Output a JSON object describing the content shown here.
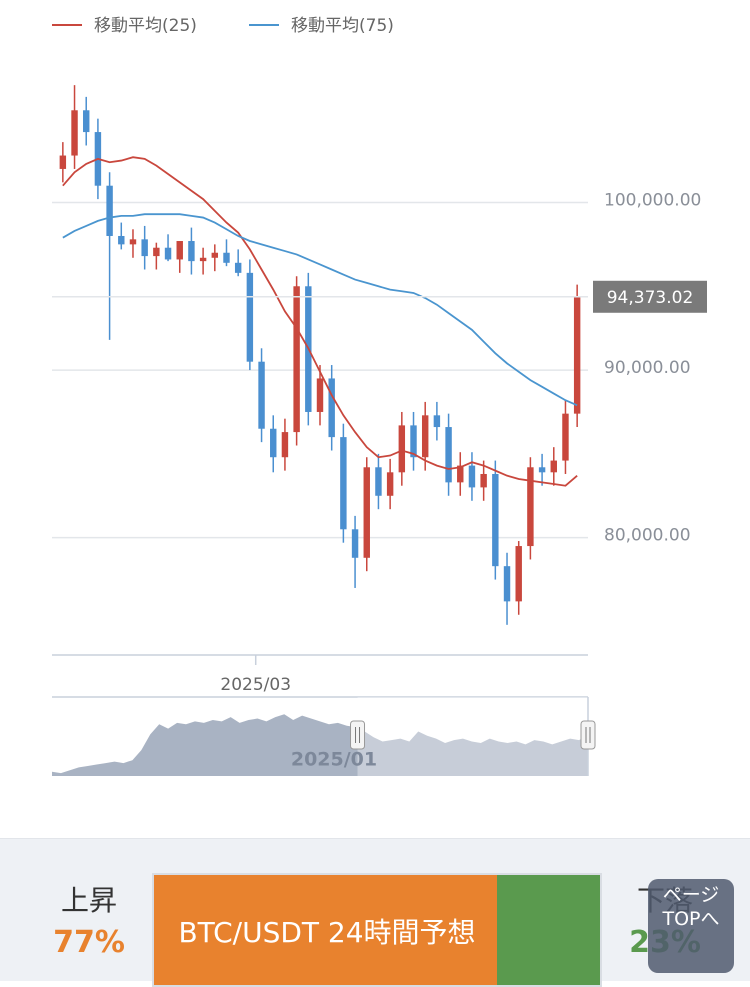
{
  "chart_data": {
    "type": "candlestick",
    "series": [
      {
        "name": "移動平均(25)",
        "color": "#c9473d",
        "values": [
          101000,
          101800,
          102300,
          102600,
          102400,
          102500,
          102700,
          102600,
          102200,
          101700,
          101200,
          100700,
          100200,
          99500,
          98800,
          98200,
          97200,
          96000,
          94800,
          93500,
          92500,
          91300,
          89900,
          88500,
          87300,
          86300,
          85400,
          84800,
          84900,
          85200,
          85000,
          84600,
          84300,
          84100,
          84200,
          84500,
          84300,
          84000,
          83700,
          83500,
          83400,
          83300,
          83200,
          83100,
          83700
        ]
      },
      {
        "name": "移動平均(75)",
        "color": "#4a95cf",
        "values": [
          97900,
          98300,
          98600,
          98900,
          99100,
          99200,
          99200,
          99300,
          99300,
          99300,
          99300,
          99200,
          99100,
          98800,
          98400,
          98000,
          97700,
          97500,
          97300,
          97100,
          96900,
          96600,
          96300,
          96000,
          95700,
          95400,
          95200,
          95000,
          94800,
          94700,
          94600,
          94300,
          93900,
          93400,
          92900,
          92400,
          91700,
          91000,
          90400,
          89900,
          89400,
          89000,
          88600,
          88200,
          87900
        ]
      }
    ],
    "open": [
      102000,
      102800,
      105500,
      104200,
      101000,
      98000,
      97500,
      97800,
      96800,
      97300,
      96600,
      97700,
      96500,
      96700,
      97000,
      96400,
      95800,
      90500,
      86500,
      84800,
      86300,
      95000,
      87500,
      89500,
      86000,
      80500,
      78800,
      84200,
      82500,
      83900,
      86700,
      84800,
      87300,
      86600,
      83300,
      84300,
      83000,
      83800,
      78300,
      76200,
      79500,
      84200,
      83900,
      84600,
      87400
    ],
    "high": [
      103600,
      107000,
      106300,
      105000,
      101800,
      98800,
      98400,
      98600,
      97600,
      98100,
      97400,
      98500,
      97300,
      97500,
      97800,
      97200,
      96600,
      91300,
      87300,
      87100,
      95600,
      95800,
      90300,
      90300,
      86800,
      81300,
      84800,
      85000,
      84700,
      87500,
      87500,
      88100,
      88100,
      87400,
      85100,
      85100,
      84600,
      84600,
      79100,
      79800,
      84800,
      85000,
      85400,
      88200,
      95100
    ],
    "low": [
      101200,
      102000,
      103400,
      100200,
      91800,
      97200,
      96700,
      96000,
      96000,
      96500,
      95800,
      95700,
      95700,
      95900,
      96200,
      95600,
      90000,
      85700,
      83900,
      84000,
      85500,
      86700,
      86700,
      85200,
      79700,
      77000,
      78000,
      81700,
      81700,
      83100,
      84000,
      84000,
      85800,
      82500,
      82500,
      82200,
      82200,
      77500,
      74800,
      75400,
      78700,
      83100,
      83100,
      83800,
      86600
    ],
    "close": [
      102800,
      105500,
      104200,
      101000,
      98000,
      97500,
      97800,
      96800,
      97300,
      96600,
      97700,
      96500,
      96700,
      97000,
      96400,
      95800,
      90500,
      86500,
      84800,
      86300,
      95000,
      87500,
      89500,
      86000,
      80500,
      78800,
      84200,
      82500,
      83900,
      86700,
      84800,
      87300,
      86600,
      83300,
      84300,
      83000,
      83800,
      78300,
      76200,
      79500,
      84200,
      83900,
      84600,
      87400,
      94373.02
    ],
    "close_labels": [
      null,
      null,
      null,
      null,
      null,
      null,
      null,
      null,
      null,
      null,
      null,
      null,
      null,
      null,
      null,
      null,
      null,
      null,
      null,
      null,
      null,
      null,
      null,
      null,
      null,
      null,
      null,
      null,
      null,
      null,
      null,
      null,
      null,
      null,
      null,
      null,
      null,
      null,
      null,
      null,
      null,
      null,
      null,
      null,
      "94,373.02"
    ],
    "up_color": "#c9473d",
    "down_color": "#4a8fd0",
    "ylim": [
      73000,
      108500
    ],
    "yticks": [
      {
        "value": 80000,
        "label": "80,000.00"
      },
      {
        "value": 90000,
        "label": "90,000.00"
      },
      {
        "value": 100000,
        "label": "100,000.00"
      }
    ],
    "xlim": [
      -0.5,
      44.5
    ],
    "xticks": [
      {
        "value": 16.5,
        "label": "2025/03"
      }
    ],
    "grid": true,
    "navigator": {
      "label": "2025/01",
      "ylim": [
        60000,
        115000
      ],
      "selection_start": 0.57,
      "values": [
        63000,
        62000,
        64000,
        66000,
        67000,
        68000,
        69000,
        70000,
        69000,
        71000,
        78000,
        89000,
        96000,
        93000,
        97000,
        96000,
        98000,
        97000,
        99000,
        98000,
        101000,
        97000,
        99000,
        100000,
        98000,
        101000,
        103000,
        99000,
        102000,
        100000,
        98000,
        96000,
        97000,
        95000,
        94000,
        91000,
        87000,
        84000,
        85000,
        86000,
        84000,
        91000,
        88000,
        86000,
        83000,
        85000,
        86000,
        84000,
        83000,
        86000,
        84000,
        83000,
        84000,
        82000,
        85000,
        84000,
        82000,
        84000,
        86000,
        85000,
        89000
      ]
    }
  },
  "sentiment": {
    "up_label": "上昇",
    "up": 77,
    "up_label_value": "77%",
    "down_label": "下落",
    "down": 23,
    "down_label_value": "23%",
    "bar_title": "BTC/USDT 24時間予想",
    "up_color": "#e8822e",
    "down_color": "#5a9a4e"
  },
  "page_top": "ページTOPへ"
}
